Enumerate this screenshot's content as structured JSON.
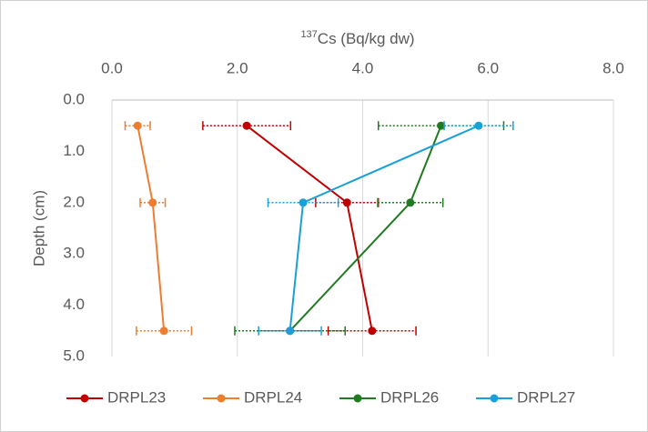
{
  "chart_data": {
    "type": "scatter",
    "title_sup": "137",
    "title": "Cs (Bq/kg dw)",
    "ylabel": "Depth (cm)",
    "xlim": [
      0,
      8
    ],
    "xticks": [
      {
        "value": 0,
        "label": "0.0"
      },
      {
        "value": 2,
        "label": "2.0"
      },
      {
        "value": 4,
        "label": "4.0"
      },
      {
        "value": 6,
        "label": "6.0"
      },
      {
        "value": 8,
        "label": "8.0"
      }
    ],
    "ylim": [
      0,
      5
    ],
    "yticks": [
      {
        "value": 0,
        "label": "0.0"
      },
      {
        "value": 1,
        "label": "1.0"
      },
      {
        "value": 2,
        "label": "2.0"
      },
      {
        "value": 3,
        "label": "3.0"
      },
      {
        "value": 4,
        "label": "4.0"
      },
      {
        "value": 5,
        "label": "5.0"
      }
    ],
    "y_inverted": true,
    "x_axis_top": true,
    "grid": true,
    "legend": "bottom",
    "series": [
      {
        "name": "DRPL23",
        "color": "#c00000",
        "x": [
          2.15,
          3.75,
          4.15
        ],
        "y": [
          0.5,
          2.0,
          4.5
        ],
        "xerr": [
          0.7,
          0.5,
          0.7
        ]
      },
      {
        "name": "DRPL24",
        "color": "#ed7d31",
        "x": [
          0.41,
          0.65,
          0.83
        ],
        "y": [
          0.5,
          2.0,
          4.5
        ],
        "xerr": [
          0.2,
          0.2,
          0.44
        ]
      },
      {
        "name": "DRPL26",
        "color": "#217a21",
        "x": [
          5.25,
          4.76,
          2.84
        ],
        "y": [
          0.5,
          2.0,
          4.5
        ],
        "xerr": [
          1.0,
          0.52,
          0.88
        ]
      },
      {
        "name": "DRPL27",
        "color": "#1a9fd8",
        "x": [
          5.85,
          3.05,
          2.84
        ],
        "y": [
          0.5,
          2.0,
          4.5
        ],
        "xerr": [
          0.55,
          0.56,
          0.5
        ]
      }
    ]
  }
}
